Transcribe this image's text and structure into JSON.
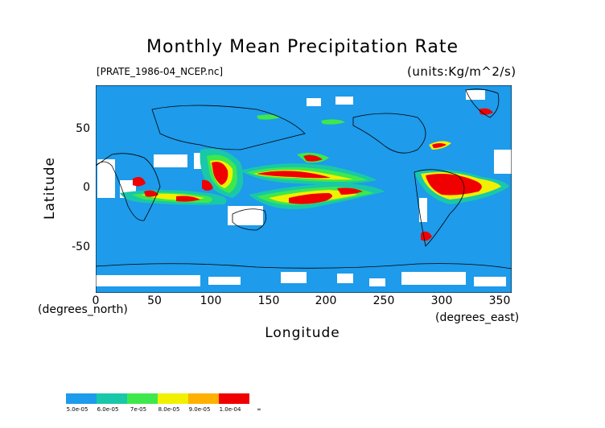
{
  "title": "Monthly Mean Precipitation Rate",
  "file_label": "[PRATE_1986-04_NCEP.nc]",
  "units_label": "(units:Kg/m^2/s)",
  "x_axis": {
    "label": "Longitude",
    "unit_label": "(degrees_north)",
    "ticks": [
      "0",
      "50",
      "100",
      "150",
      "200",
      "250",
      "300",
      "350"
    ],
    "range": [
      0,
      360
    ]
  },
  "y_axis": {
    "label": "Latitude",
    "unit_label": "(degrees_east)",
    "ticks": [
      "50",
      "0",
      "-50"
    ],
    "range": [
      -90,
      90
    ]
  },
  "colorbar": {
    "labels": [
      "5.0e-05",
      "6.0e-05",
      "7e-05",
      "8.0e-05",
      "9.0e-05",
      "1.0e-04",
      "∞"
    ],
    "colors": [
      "#1e9bea",
      "#19c8a8",
      "#3ee84c",
      "#9be81e",
      "#f0f000",
      "#ffb000",
      "#f00000"
    ]
  },
  "map_colors": {
    "ocean_background": "#1e9bea",
    "no_data": "#ffffff",
    "level_1": "#19c8a8",
    "level_2": "#3ee84c",
    "level_3": "#f0f000",
    "level_4": "#ffb000",
    "level_5": "#f00000",
    "coastline": "#000000"
  }
}
